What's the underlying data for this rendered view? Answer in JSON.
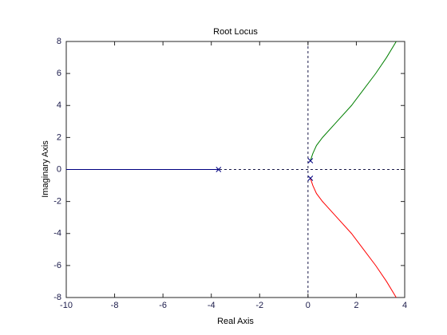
{
  "chart_data": {
    "type": "line",
    "title": "Root Locus",
    "xlabel": "Real Axis",
    "ylabel": "Imaginary Axis",
    "xlim": [
      -10,
      4
    ],
    "xticks": [
      -10,
      -8,
      -6,
      -4,
      -2,
      0,
      2,
      4
    ],
    "ylim": [
      -8,
      8
    ],
    "yticks": [
      -8,
      -6,
      -4,
      -2,
      0,
      2,
      4,
      6,
      8
    ],
    "series": [
      {
        "color": "#000080",
        "x": [
          -3.7,
          -10
        ],
        "values": [
          0,
          0
        ]
      },
      {
        "color": "#007f00",
        "x": [
          0.1,
          0.2,
          0.35,
          0.6,
          1.2,
          1.8,
          2.3,
          2.8,
          3.25,
          3.65
        ],
        "values": [
          0.55,
          1,
          1.5,
          2,
          3,
          4,
          5,
          6,
          7,
          8
        ]
      },
      {
        "color": "#ff0000",
        "x": [
          0.1,
          0.2,
          0.35,
          0.6,
          1.2,
          1.8,
          2.3,
          2.8,
          3.25,
          3.65
        ],
        "values": [
          -0.55,
          -1,
          -1.5,
          -2,
          -3,
          -4,
          -5,
          -6,
          -7,
          -8
        ]
      }
    ],
    "poles": {
      "color": "#000080",
      "x": [
        -3.7,
        0.1,
        0.1
      ],
      "y": [
        0,
        0.55,
        -0.55
      ]
    }
  }
}
